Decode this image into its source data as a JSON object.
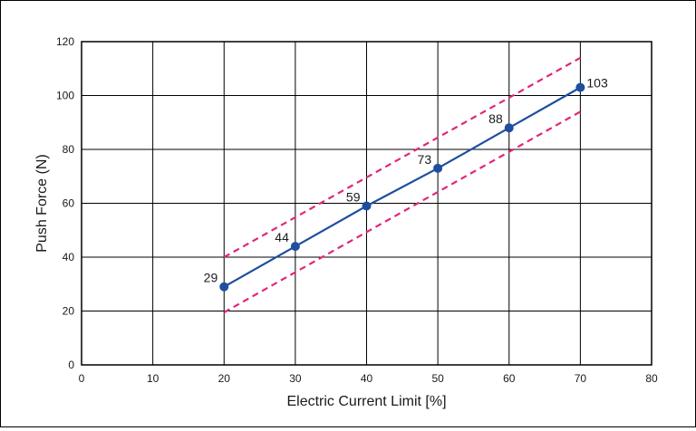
{
  "chart_data": {
    "type": "line",
    "xlabel": "Electric Current Limit [%]",
    "ylabel": "Push Force (N)",
    "xlim": [
      0,
      80
    ],
    "ylim": [
      0,
      120
    ],
    "x_ticks": [
      0,
      10,
      20,
      30,
      40,
      50,
      60,
      70,
      80
    ],
    "y_ticks": [
      0,
      20,
      40,
      60,
      80,
      100,
      120
    ],
    "grid": true,
    "colors": {
      "series": "#1f4e9e",
      "bounds": "#e0267a"
    },
    "series": [
      {
        "x": [
          20,
          30,
          40,
          50,
          60,
          70
        ],
        "values": [
          29,
          44,
          59,
          73,
          88,
          103
        ],
        "data_labels": [
          "29",
          "44",
          "59",
          "73",
          "88",
          "103"
        ],
        "style": "solid-with-markers"
      },
      {
        "x": [
          20,
          70
        ],
        "values": [
          40,
          114
        ],
        "style": "dashed"
      },
      {
        "x": [
          20,
          70
        ],
        "values": [
          19.5,
          94
        ],
        "style": "dashed"
      }
    ]
  }
}
